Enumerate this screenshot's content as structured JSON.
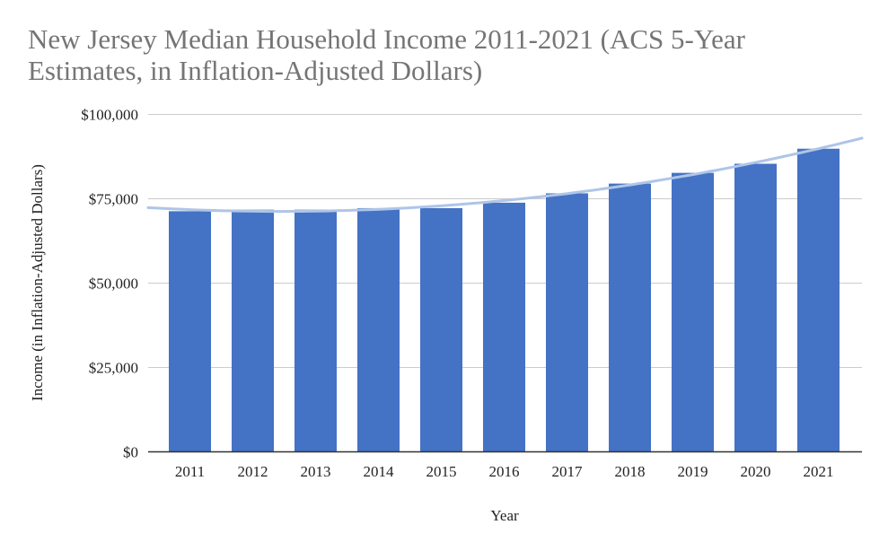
{
  "chart_data": {
    "type": "bar",
    "title": "New Jersey Median Household Income 2011-2021 (ACS 5-Year Estimates, in Inflation-Adjusted Dollars)",
    "xlabel": "Year",
    "ylabel": "Income (in Inflation-Adjusted Dollars)",
    "categories": [
      "2011",
      "2012",
      "2013",
      "2014",
      "2015",
      "2016",
      "2017",
      "2018",
      "2019",
      "2020",
      "2021"
    ],
    "values": [
      71180,
      71629,
      71629,
      72093,
      72093,
      73702,
      76475,
      79363,
      82545,
      85245,
      89703
    ],
    "ylim": [
      0,
      100000
    ],
    "yticks": [
      0,
      25000,
      50000,
      75000,
      100000
    ],
    "ytick_labels": [
      "$0",
      "$25,000",
      "$50,000",
      "$75,000",
      "$100,000"
    ],
    "trendline": {
      "type": "polynomial",
      "color": "#aec5e8"
    },
    "bar_color": "#4472c4",
    "grid": true,
    "legend": "none"
  }
}
